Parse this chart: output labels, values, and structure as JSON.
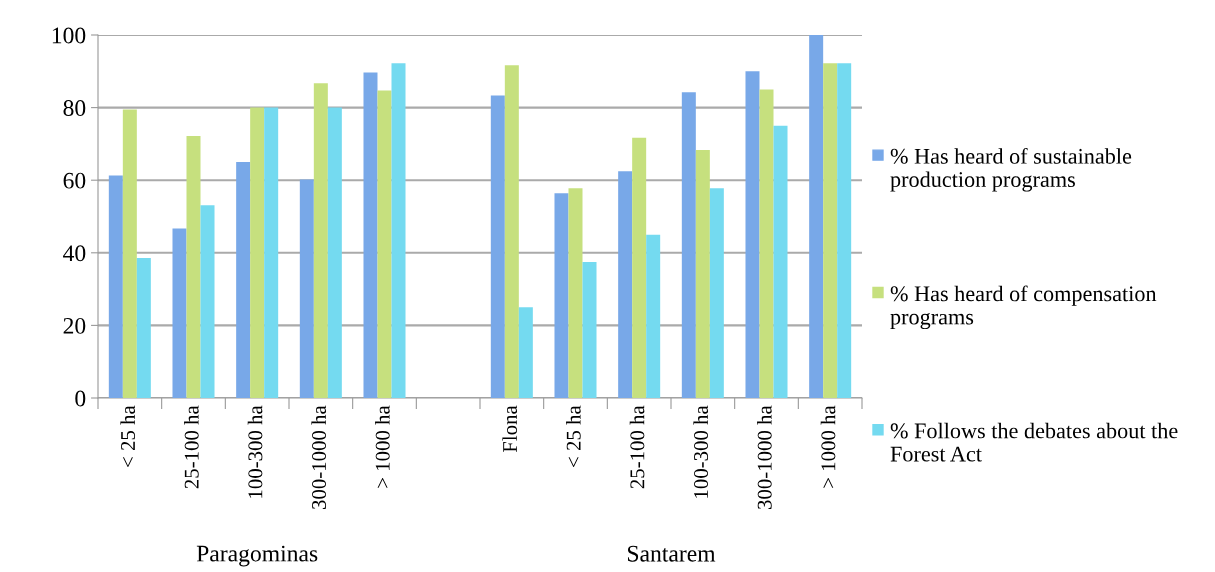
{
  "chart_data": {
    "type": "bar",
    "categories": [
      "< 25 ha",
      "25-100 ha",
      "100-300 ha",
      "300-1000 ha",
      "> 1000 ha",
      null,
      "Flona",
      "< 25 ha",
      "25-100 ha",
      "100-300 ha",
      "300-1000 ha",
      "> 1000 ha"
    ],
    "series": [
      {
        "name": "% Has heard of sustainable production programs",
        "color": "#78a8e8",
        "values": [
          61.3,
          46.7,
          65,
          60.2,
          89.7,
          null,
          83.3,
          56.4,
          62.5,
          84.2,
          90,
          100
        ]
      },
      {
        "name": "% Has heard of compensation programs",
        "color": "#c6e07e",
        "values": [
          79.5,
          72.2,
          80,
          86.7,
          84.7,
          null,
          91.7,
          57.8,
          71.7,
          68.3,
          85,
          92.2
        ]
      },
      {
        "name": "% Follows the debates about the Forest Act",
        "color": "#74daf0",
        "values": [
          38.6,
          53.1,
          80,
          80,
          92.2,
          null,
          25,
          37.5,
          45,
          57.8,
          75,
          92.2
        ]
      }
    ],
    "annotations": [
      "Paragominas",
      "Santarem"
    ],
    "ylim": [
      0,
      100
    ],
    "yticks": [
      0,
      20,
      40,
      60,
      80,
      100
    ],
    "grid": "y",
    "legend": "right"
  }
}
